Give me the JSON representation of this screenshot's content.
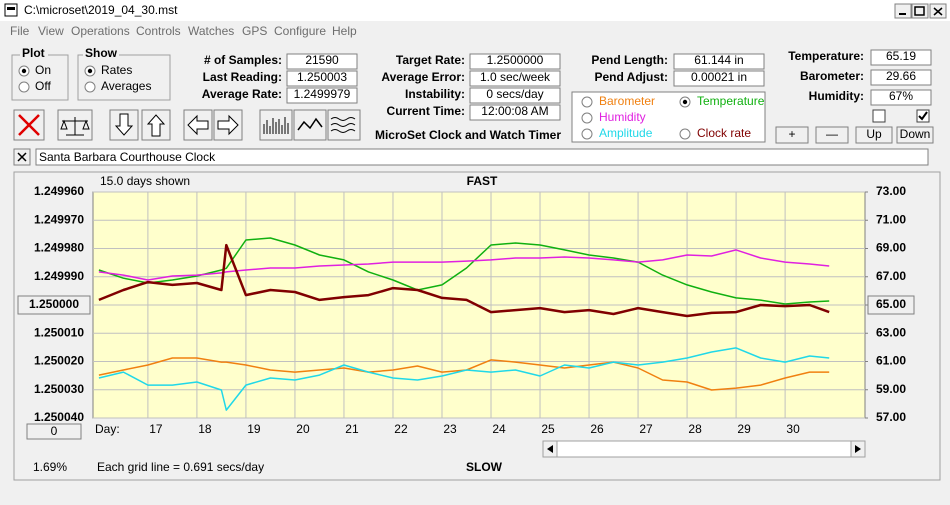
{
  "window": {
    "title": "C:\\microset\\2019_04_30.mst"
  },
  "menu": [
    "File",
    "View",
    "Operations",
    "Controls",
    "Watches",
    "GPS",
    "Configure",
    "Help"
  ],
  "plot_group": {
    "label": "Plot",
    "options": [
      "On",
      "Off"
    ],
    "selected": 0
  },
  "show_group": {
    "label": "Show",
    "options": [
      "Rates",
      "Averages"
    ],
    "selected": 0
  },
  "fields_left": [
    {
      "label": "# of Samples:",
      "value": "21590"
    },
    {
      "label": "Last Reading:",
      "value": "1.250003"
    },
    {
      "label": "Average Rate:",
      "value": "1.2499979"
    }
  ],
  "fields_mid": [
    {
      "label": "Target Rate:",
      "value": "1.2500000"
    },
    {
      "label": "Average Error:",
      "value": "1.0 sec/week"
    },
    {
      "label": "Instability:",
      "value": "0 secs/day"
    },
    {
      "label": "Current Time:",
      "value": "12:00:08 AM"
    }
  ],
  "app_title": "MicroSet Clock and Watch Timer",
  "fields_pend": [
    {
      "label": "Pend Length:",
      "value": "61.144 in"
    },
    {
      "label": "Pend Adjust:",
      "value": "0.00021 in"
    }
  ],
  "readings": [
    {
      "label": "Temperature:",
      "value": "65.19"
    },
    {
      "label": "Barometer:",
      "value": "29.66"
    },
    {
      "label": "Humidity:",
      "value": "67%"
    }
  ],
  "checkboxes": [
    false,
    true
  ],
  "buttons": [
    "+",
    "—",
    "Up",
    "Down"
  ],
  "watch_name": "Santa Barbara Courthouse Clock",
  "chart_data": {
    "type": "line",
    "days_shown": "15.0 days shown",
    "top_label": "FAST",
    "bottom_label": "SLOW",
    "x_label": "Day:",
    "zoom_button": "0",
    "percent": "1.69%",
    "footer": "Each grid line = 0.691 secs/day",
    "selected_series": 1,
    "grid": true,
    "xlim": [
      15.88,
      31.63
    ],
    "xticks": [
      17,
      18,
      19,
      20,
      21,
      22,
      23,
      24,
      25,
      26,
      27,
      28,
      29,
      30
    ],
    "ylim": [
      1.25004,
      1.24996
    ],
    "yticks": [
      {
        "value": 1.24996,
        "label": "1.249960"
      },
      {
        "value": 1.24997,
        "label": "1.249970"
      },
      {
        "value": 1.24998,
        "label": "1.249980"
      },
      {
        "value": 1.24999,
        "label": "1.249990"
      },
      {
        "value": 1.25,
        "label": "1.250000"
      },
      {
        "value": 1.25001,
        "label": "1.250010"
      },
      {
        "value": 1.25002,
        "label": "1.250020"
      },
      {
        "value": 1.25003,
        "label": "1.250030"
      },
      {
        "value": 1.25004,
        "label": "1.250040"
      }
    ],
    "y2lim": [
      57,
      73
    ],
    "y2ticks": [
      {
        "value": 73,
        "label": "73.00"
      },
      {
        "value": 71,
        "label": "71.00"
      },
      {
        "value": 69,
        "label": "69.00"
      },
      {
        "value": 67,
        "label": "67.00"
      },
      {
        "value": 65,
        "label": "65.00"
      },
      {
        "value": 63,
        "label": "63.00"
      },
      {
        "value": 61,
        "label": "61.00"
      },
      {
        "value": 59,
        "label": "59.00"
      },
      {
        "value": 57,
        "label": "57.00"
      }
    ],
    "x": [
      16,
      16.5,
      17,
      17.5,
      18,
      18.5,
      18.6,
      19,
      19.5,
      20,
      20.5,
      21,
      21.5,
      22,
      22.5,
      23,
      23.5,
      24,
      24.5,
      25,
      25.5,
      26,
      26.5,
      27,
      27.5,
      28,
      28.5,
      29,
      29.5,
      30,
      30.5,
      30.9
    ],
    "series": [
      {
        "name": "Barometer",
        "color": "#f08010",
        "axis": "y2",
        "width": 1.5,
        "values": [
          60.04,
          60.4,
          60.75,
          61.25,
          61.25,
          60.96,
          60.96,
          60.75,
          60.4,
          60.25,
          60.4,
          60.54,
          60.25,
          60.4,
          60.68,
          60.25,
          60.4,
          61.11,
          60.96,
          60.75,
          60.54,
          60.75,
          60.96,
          60.54,
          59.69,
          59.55,
          58.98,
          59.12,
          59.33,
          59.83,
          60.25,
          60.25
        ]
      },
      {
        "name": "Temperature",
        "color": "#10b010",
        "axis": "y2",
        "width": 1.5,
        "values": [
          67.48,
          66.9,
          66.56,
          66.77,
          67.05,
          67.48,
          67.6,
          69.6,
          69.74,
          69.25,
          68.54,
          68.19,
          67.34,
          66.77,
          66.06,
          66.42,
          67.62,
          69.25,
          69.39,
          69.25,
          68.9,
          68.54,
          68.33,
          68.04,
          67.12,
          66.42,
          65.92,
          65.5,
          65.35,
          65.07,
          65.21,
          65.28
        ]
      },
      {
        "name": "Humidity",
        "color": "#e020e0",
        "axis": "y2",
        "width": 1.5,
        "values": [
          67.34,
          67.12,
          66.77,
          67.05,
          67.12,
          67.27,
          67.34,
          67.48,
          67.62,
          67.62,
          67.76,
          67.83,
          67.9,
          68.04,
          68.04,
          68.04,
          68.11,
          68.19,
          68.33,
          68.33,
          68.4,
          68.33,
          68.19,
          68.04,
          68.19,
          68.54,
          68.47,
          68.9,
          68.33,
          68.04,
          67.9,
          67.76
        ]
      },
      {
        "name": "Amplitude",
        "color": "#20d8e8",
        "axis": "y2",
        "width": 1.5,
        "values": [
          59.83,
          60.25,
          59.33,
          59.33,
          59.55,
          58.98,
          57.56,
          59.33,
          59.83,
          59.69,
          60.04,
          60.75,
          60.25,
          59.83,
          59.69,
          59.97,
          60.4,
          60.25,
          60.4,
          59.97,
          60.75,
          60.54,
          60.96,
          60.75,
          60.96,
          61.25,
          61.67,
          61.96,
          61.25,
          60.96,
          61.39,
          61.25
        ]
      },
      {
        "name": "Clock rate",
        "color": "#800000",
        "axis": "y",
        "width": 2.5,
        "values": [
          1.2499982,
          1.2499947,
          1.2499919,
          1.2499929,
          1.2499922,
          1.2499947,
          1.2499788,
          1.2499965,
          1.2499947,
          1.2499954,
          1.2499982,
          1.2499972,
          1.2499965,
          1.249994,
          1.2499947,
          1.2499975,
          1.2499982,
          1.2500025,
          1.2500018,
          1.2500011,
          1.2500025,
          1.2500018,
          1.2500032,
          1.2500011,
          1.2500025,
          1.2500039,
          1.2500028,
          1.2500025,
          1.25,
          1.2500004,
          1.25,
          1.2500025
        ]
      }
    ]
  }
}
